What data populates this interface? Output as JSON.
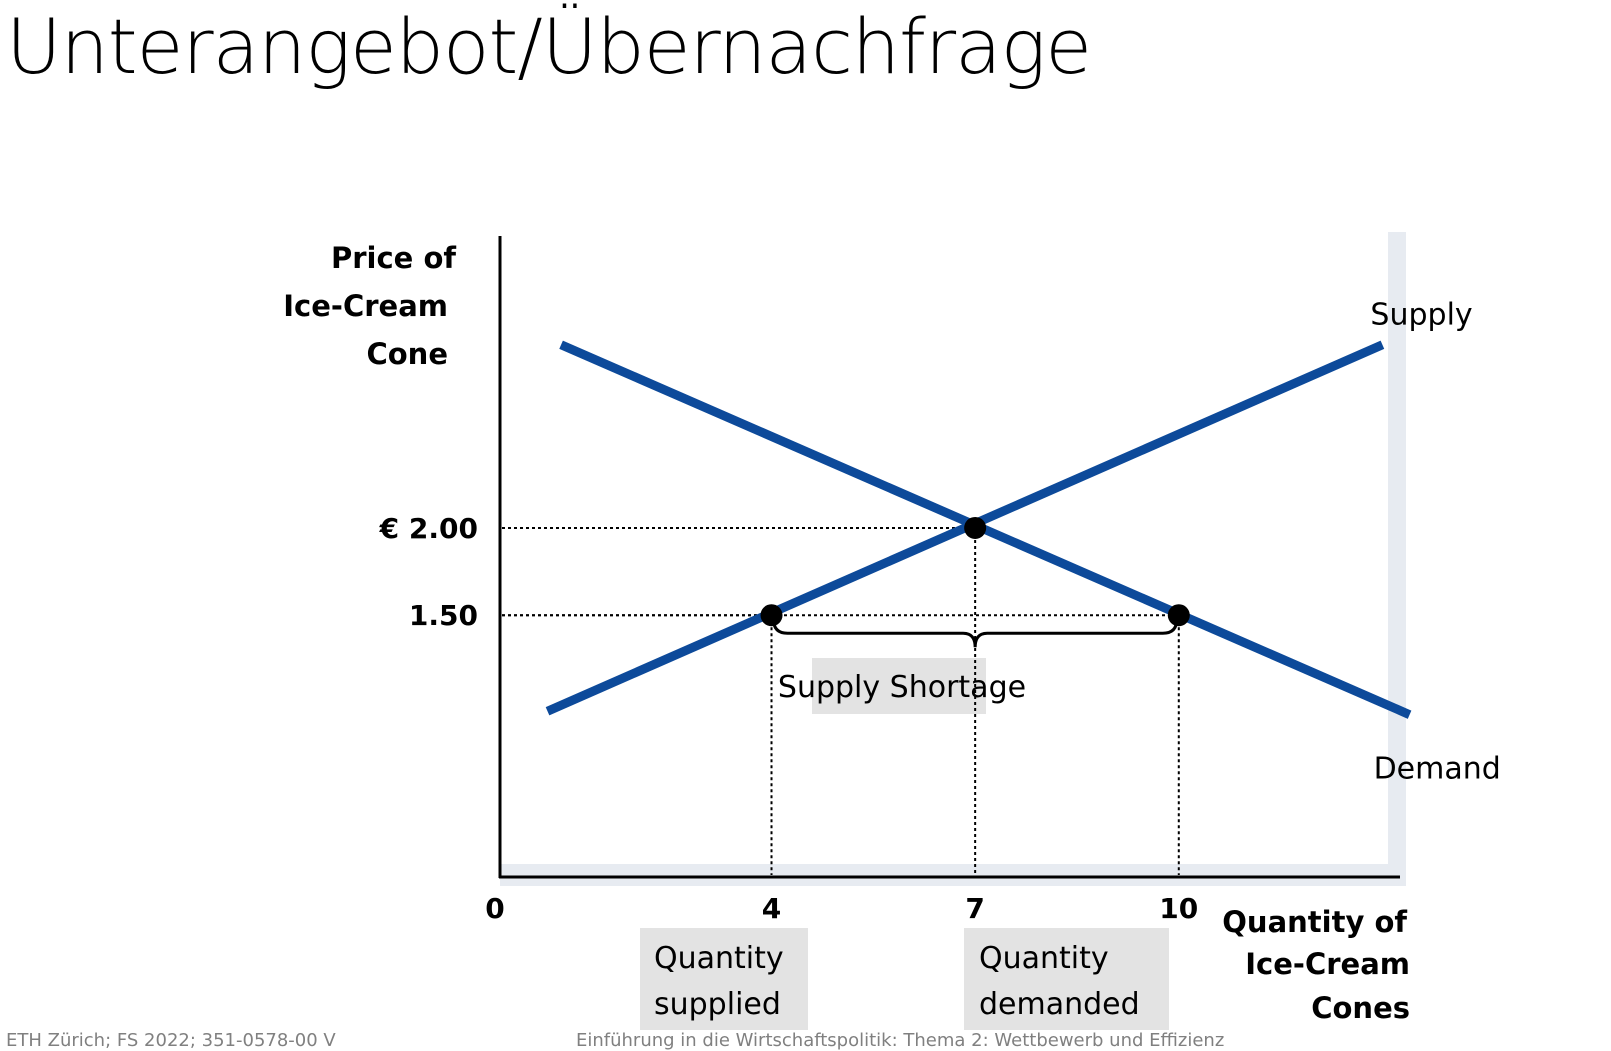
{
  "slide": {
    "title": "Unterangebot/Übernachfrage",
    "footer_left": "ETH Zürich; FS 2022; 351-0578-00 V",
    "footer_center": "Einführung in die Wirtschaftspolitik: Thema 2: Wettbewerb und Effizienz"
  },
  "colors": {
    "curve": "#0d4a9a",
    "shadow": "#e7ebf1",
    "label_box": "#e3e3e3"
  },
  "chart_data": {
    "type": "line",
    "ylabel": [
      "Price of",
      "Ice-Cream",
      "Cone"
    ],
    "xlabel": [
      "Quantity of",
      "Ice-Cream",
      "Cones"
    ],
    "x_origin_label": "0",
    "xlim": [
      0,
      13.2
    ],
    "ylim": [
      0,
      3.65
    ],
    "x_ticks": [
      {
        "value": 4,
        "label": "4"
      },
      {
        "value": 7,
        "label": "7"
      },
      {
        "value": 10,
        "label": "10"
      }
    ],
    "y_ticks": [
      {
        "value": 2.0,
        "label": "€ 2.00"
      },
      {
        "value": 1.5,
        "label": "1.50"
      }
    ],
    "series": [
      {
        "name": "Supply",
        "x": [
          0.7,
          13.0
        ],
        "y": [
          0.95,
          3.05
        ]
      },
      {
        "name": "Demand",
        "x": [
          0.9,
          13.4
        ],
        "y": [
          3.05,
          0.93
        ]
      }
    ],
    "points": [
      {
        "x": 7,
        "y": 2.0
      },
      {
        "x": 4,
        "y": 1.5
      },
      {
        "x": 10,
        "y": 1.5
      }
    ],
    "annotations": {
      "bracket_label": "Supply Shortage",
      "quantity_supplied": [
        "Quantity",
        "supplied"
      ],
      "quantity_demanded": [
        "Quantity",
        "demanded"
      ]
    }
  }
}
